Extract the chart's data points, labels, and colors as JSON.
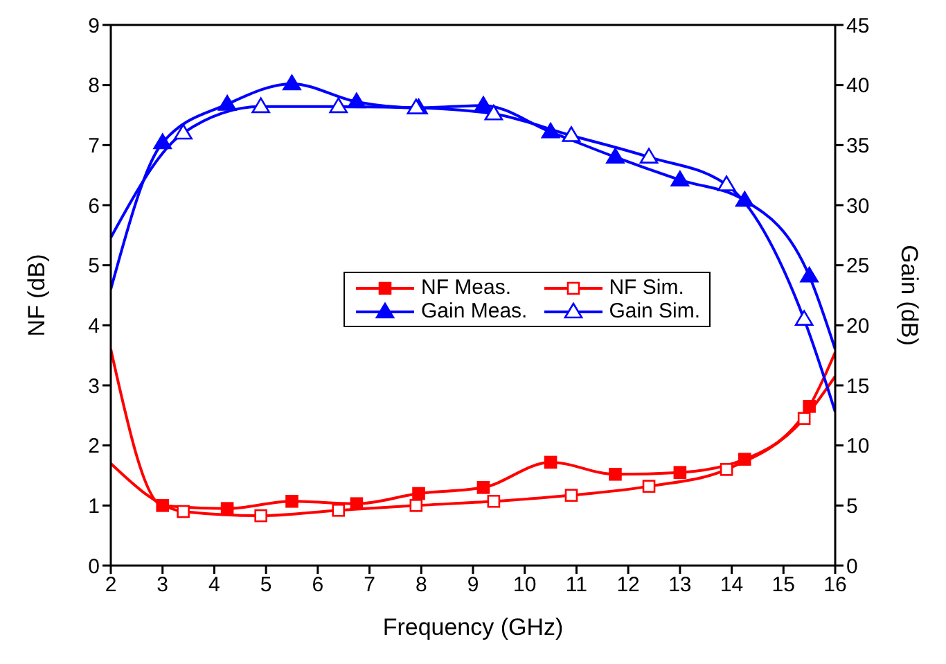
{
  "chart_data": {
    "type": "line",
    "xlabel": "Frequency (GHz)",
    "ylabel": "NF (dB)",
    "y2label": "Gain (dB)",
    "xlim": [
      2,
      16
    ],
    "xticks": [
      2,
      3,
      4,
      5,
      6,
      7,
      8,
      9,
      10,
      11,
      12,
      13,
      14,
      15,
      16
    ],
    "ylim": [
      0,
      9
    ],
    "yticks": [
      0,
      1,
      2,
      3,
      4,
      5,
      6,
      7,
      8,
      9
    ],
    "y2lim": [
      0,
      45
    ],
    "y2ticks": [
      0,
      5,
      10,
      15,
      20,
      25,
      30,
      35,
      40,
      45
    ],
    "legend": "right",
    "line_style": "solid",
    "series": [
      {
        "name": "NF Meas.",
        "color": "#ff0000",
        "marker": "square",
        "x": [
          2,
          3,
          4.25,
          5.5,
          6.75,
          7.95,
          9.2,
          10.5,
          11.75,
          13,
          14.25,
          15.5,
          16
        ],
        "values": [
          3.6,
          1.0,
          0.95,
          1.07,
          1.03,
          1.2,
          1.3,
          1.72,
          1.52,
          1.55,
          1.77,
          2.65,
          3.55
        ]
      },
      {
        "name": "NF Sim.",
        "color": "#ff0000",
        "marker": "square",
        "x": [
          2,
          3.4,
          4.9,
          6.4,
          7.9,
          9.4,
          10.9,
          12.4,
          13.9,
          15.4,
          16
        ],
        "values": [
          1.7,
          0.9,
          0.83,
          0.92,
          1.0,
          1.07,
          1.17,
          1.32,
          1.6,
          2.45,
          3.15
        ]
      },
      {
        "name": "Gain Meas.",
        "color": "#0000ff",
        "marker": "triangle",
        "axis": "y2",
        "x": [
          2,
          3,
          4.25,
          5.5,
          6.75,
          7.95,
          9.2,
          10.5,
          11.75,
          13,
          14.25,
          15.5,
          16
        ],
        "values": [
          23,
          35.2,
          38.4,
          40.1,
          38.6,
          38.1,
          38.3,
          36.1,
          34,
          32.1,
          30.4,
          24.1,
          18
        ]
      },
      {
        "name": "Gain Sim.",
        "color": "#0000ff",
        "marker": "triangle",
        "axis": "y2",
        "x": [
          2,
          3.4,
          4.9,
          6.4,
          7.9,
          9.4,
          10.9,
          12.4,
          13.9,
          15.4,
          16
        ],
        "values": [
          27.3,
          36,
          38.2,
          38.2,
          38.1,
          37.6,
          35.8,
          34,
          31.7,
          20.5,
          12.8
        ]
      }
    ]
  }
}
